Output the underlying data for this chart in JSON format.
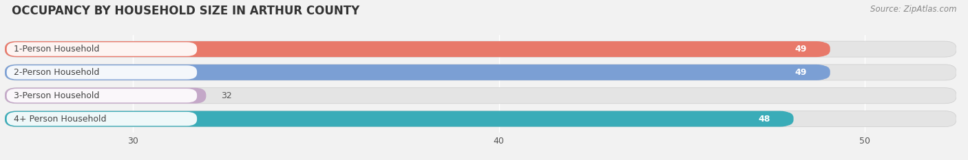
{
  "title": "OCCUPANCY BY HOUSEHOLD SIZE IN ARTHUR COUNTY",
  "source": "Source: ZipAtlas.com",
  "categories": [
    "1-Person Household",
    "2-Person Household",
    "3-Person Household",
    "4+ Person Household"
  ],
  "values": [
    49,
    49,
    32,
    48
  ],
  "bar_colors": [
    "#E8796A",
    "#7B9FD4",
    "#C4A8C8",
    "#3AACB8"
  ],
  "background_color": "#F2F2F2",
  "bar_bg_color": "#E4E4E4",
  "xlim_min": 26.5,
  "xlim_max": 52.5,
  "data_min": 26.5,
  "xticks": [
    30,
    40,
    50
  ],
  "label_bg_color": "#FFFFFF",
  "value_color_outside": "#555555",
  "title_fontsize": 12,
  "label_fontsize": 9,
  "value_fontsize": 9,
  "source_fontsize": 8.5,
  "bar_height": 0.68
}
